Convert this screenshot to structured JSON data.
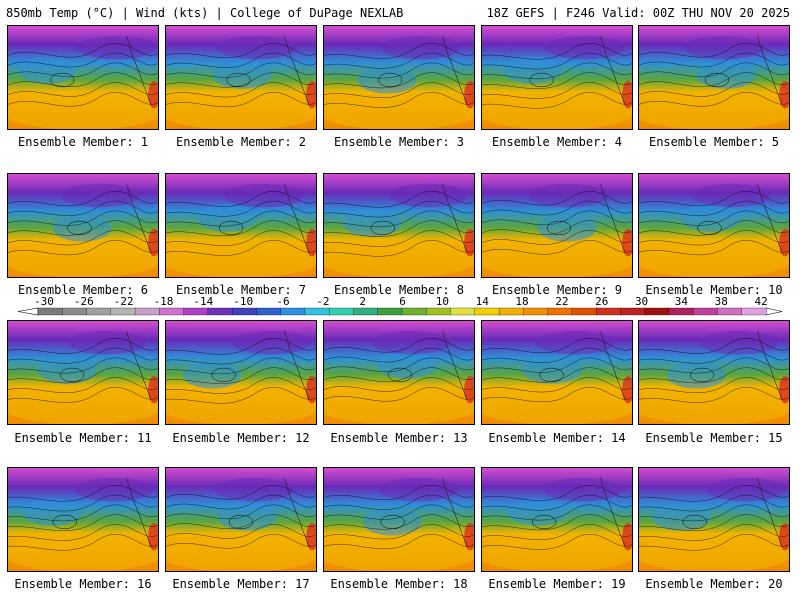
{
  "header": {
    "title_left": "850mb Temp (°C) | Wind (kts) | College of DuPage NEXLAB",
    "title_right": "18Z GEFS | F246 Valid: 00Z THU NOV 20 2025"
  },
  "members": [
    "Ensemble Member: 1",
    "Ensemble Member: 2",
    "Ensemble Member: 3",
    "Ensemble Member: 4",
    "Ensemble Member: 5",
    "Ensemble Member: 6",
    "Ensemble Member: 7",
    "Ensemble Member: 8",
    "Ensemble Member: 9",
    "Ensemble Member: 10",
    "Ensemble Member: 11",
    "Ensemble Member: 12",
    "Ensemble Member: 13",
    "Ensemble Member: 14",
    "Ensemble Member: 15",
    "Ensemble Member: 16",
    "Ensemble Member: 17",
    "Ensemble Member: 18",
    "Ensemble Member: 19",
    "Ensemble Member: 20"
  ],
  "colorbar": {
    "ticks": [
      "-30",
      "-26",
      "-22",
      "-18",
      "-14",
      "-10",
      "-6",
      "-2",
      "2",
      "6",
      "10",
      "14",
      "18",
      "22",
      "26",
      "30",
      "34",
      "38",
      "42"
    ],
    "colors": [
      "#7a7a7a",
      "#8c8c8c",
      "#a0a0a0",
      "#b4b4b4",
      "#c8a0c8",
      "#d070d0",
      "#b040c8",
      "#7030b8",
      "#4040c0",
      "#3060d0",
      "#3090e0",
      "#30c0e0",
      "#30d0b0",
      "#30b080",
      "#40a040",
      "#70b030",
      "#a0c020",
      "#e0e040",
      "#f0d000",
      "#f0b000",
      "#f09000",
      "#f07000",
      "#e05000",
      "#d03020",
      "#c02020",
      "#a01010",
      "#b02060",
      "#c040a0",
      "#d070c0",
      "#e0a0e0"
    ]
  },
  "map_style": {
    "warm_start": "#f08a00",
    "warm_mid": "#f2b400",
    "cool": "#2f8fd8",
    "cold": "#6a2ab8",
    "polar": "#d44ed0",
    "green": "#5aa640",
    "land_warm": "#d83020"
  }
}
